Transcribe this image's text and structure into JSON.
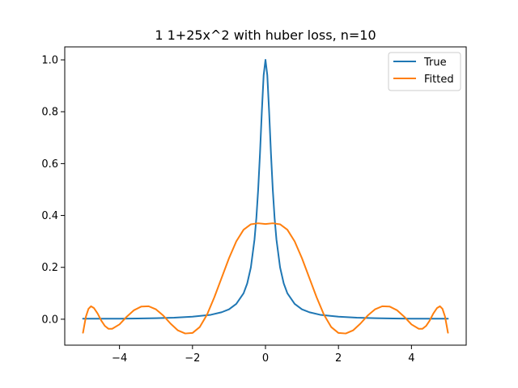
{
  "chart_data": {
    "type": "line",
    "title": "1 1+25x^2 with huber loss, n=10",
    "xlabel": "",
    "ylabel": "",
    "xlim": [
      -5.5,
      5.5
    ],
    "ylim": [
      -0.1,
      1.05
    ],
    "xticks": [
      -4,
      -2,
      0,
      2,
      4
    ],
    "xtick_labels": [
      "−4",
      "−2",
      "0",
      "2",
      "4"
    ],
    "yticks": [
      0.0,
      0.2,
      0.4,
      0.6,
      0.8,
      1.0
    ],
    "ytick_labels": [
      "0.0",
      "0.2",
      "0.4",
      "0.6",
      "0.8",
      "1.0"
    ],
    "grid": false,
    "legend_position": "top-right",
    "series": [
      {
        "name": "True",
        "color": "#1f77b4",
        "x": [
          -5.0,
          -4.5,
          -4.0,
          -3.5,
          -3.0,
          -2.5,
          -2.0,
          -1.5,
          -1.2,
          -1.0,
          -0.8,
          -0.6,
          -0.5,
          -0.4,
          -0.3,
          -0.25,
          -0.2,
          -0.15,
          -0.1,
          -0.05,
          0.0,
          0.05,
          0.1,
          0.15,
          0.2,
          0.25,
          0.3,
          0.4,
          0.5,
          0.6,
          0.8,
          1.0,
          1.2,
          1.5,
          2.0,
          2.5,
          3.0,
          3.5,
          4.0,
          4.5,
          5.0
        ],
        "y": [
          0.002,
          0.002,
          0.002,
          0.003,
          0.004,
          0.006,
          0.01,
          0.017,
          0.027,
          0.038,
          0.059,
          0.1,
          0.138,
          0.2,
          0.308,
          0.39,
          0.5,
          0.64,
          0.8,
          0.941,
          1.0,
          0.941,
          0.8,
          0.64,
          0.5,
          0.39,
          0.308,
          0.2,
          0.138,
          0.1,
          0.059,
          0.038,
          0.027,
          0.017,
          0.01,
          0.006,
          0.004,
          0.003,
          0.002,
          0.002,
          0.002
        ]
      },
      {
        "name": "Fitted",
        "color": "#ff7f0e",
        "x": [
          -5.0,
          -4.92,
          -4.85,
          -4.78,
          -4.7,
          -4.6,
          -4.5,
          -4.4,
          -4.3,
          -4.2,
          -4.0,
          -3.8,
          -3.6,
          -3.4,
          -3.2,
          -3.0,
          -2.8,
          -2.6,
          -2.4,
          -2.2,
          -2.0,
          -1.8,
          -1.6,
          -1.4,
          -1.2,
          -1.0,
          -0.8,
          -0.6,
          -0.4,
          -0.2,
          0.0,
          0.2,
          0.4,
          0.6,
          0.8,
          1.0,
          1.2,
          1.4,
          1.6,
          1.8,
          2.0,
          2.2,
          2.4,
          2.6,
          2.8,
          3.0,
          3.2,
          3.4,
          3.6,
          3.8,
          4.0,
          4.2,
          4.3,
          4.4,
          4.5,
          4.6,
          4.7,
          4.78,
          4.85,
          4.92,
          5.0
        ],
        "y": [
          -0.052,
          0.01,
          0.04,
          0.05,
          0.043,
          0.022,
          -0.005,
          -0.026,
          -0.037,
          -0.037,
          -0.02,
          0.01,
          0.035,
          0.049,
          0.05,
          0.038,
          0.014,
          -0.017,
          -0.043,
          -0.055,
          -0.053,
          -0.03,
          0.018,
          0.085,
          0.16,
          0.235,
          0.3,
          0.345,
          0.366,
          0.37,
          0.367,
          0.37,
          0.366,
          0.345,
          0.3,
          0.235,
          0.16,
          0.085,
          0.018,
          -0.03,
          -0.053,
          -0.055,
          -0.043,
          -0.017,
          0.014,
          0.038,
          0.05,
          0.049,
          0.035,
          0.01,
          -0.02,
          -0.037,
          -0.037,
          -0.026,
          -0.005,
          0.022,
          0.043,
          0.05,
          0.04,
          0.01,
          -0.052
        ]
      }
    ]
  }
}
